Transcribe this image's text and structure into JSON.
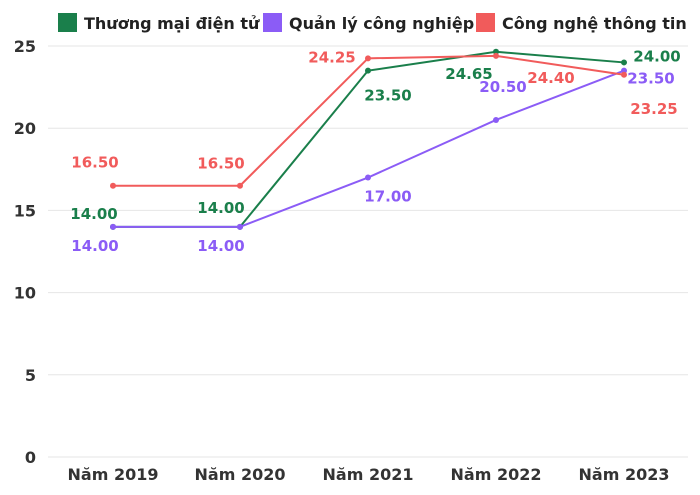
{
  "chart_data": {
    "type": "line",
    "categories": [
      "Năm 2019",
      "Năm 2020",
      "Năm 2021",
      "Năm 2022",
      "Năm 2023"
    ],
    "series": [
      {
        "name": "Thương mại điện tử",
        "color": "#1a7f4b",
        "values": [
          14.0,
          14.0,
          23.5,
          24.65,
          24.0
        ],
        "labels": [
          "14.00",
          "14.00",
          "23.50",
          "24.65",
          "24.00"
        ]
      },
      {
        "name": "Quản lý công nghiệp",
        "color": "#8b5cf6",
        "values": [
          14.0,
          14.0,
          17.0,
          20.5,
          23.5
        ],
        "labels": [
          "14.00",
          "14.00",
          "17.00",
          "20.50",
          "23.50"
        ]
      },
      {
        "name": "Công nghệ thông tin",
        "color": "#f15b5b",
        "values": [
          16.5,
          16.5,
          24.25,
          24.4,
          23.25
        ],
        "labels": [
          "16.50",
          "16.50",
          "24.25",
          "24.40",
          "23.25"
        ]
      }
    ],
    "ylim": [
      0,
      25
    ],
    "yticks": [
      "0",
      "5",
      "10",
      "15",
      "20",
      "25"
    ],
    "title": "",
    "xlabel": "",
    "ylabel": "",
    "grid": true,
    "legend": "top"
  }
}
